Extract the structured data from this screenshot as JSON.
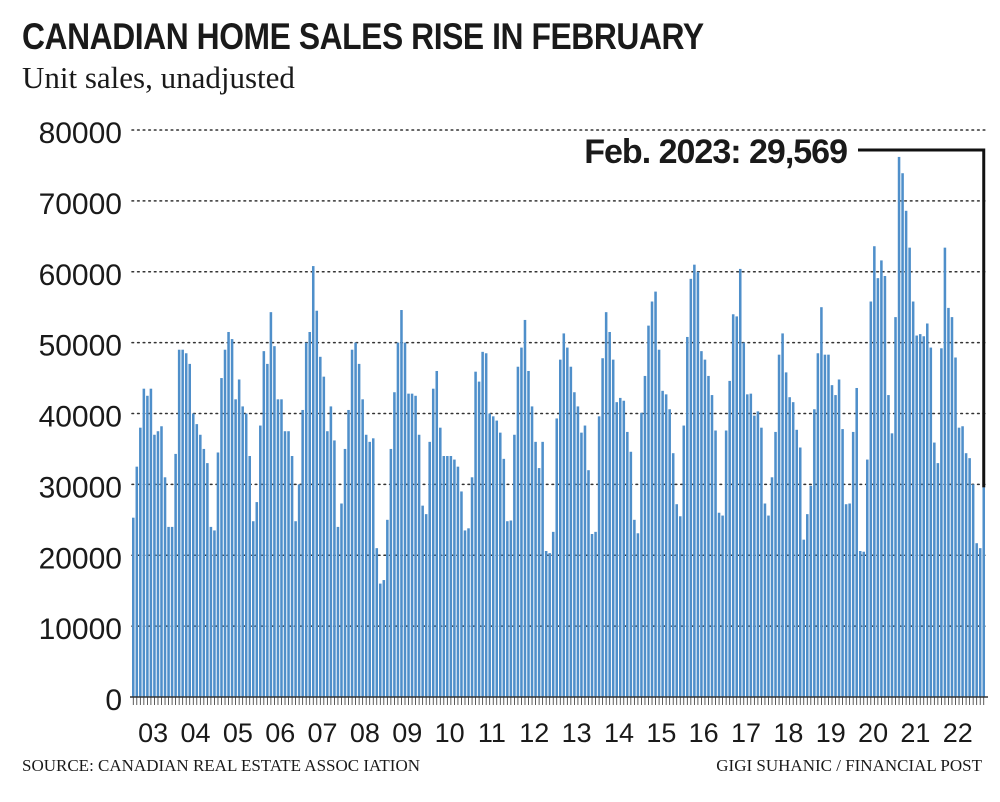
{
  "header": {
    "title": "CANADIAN HOME SALES RISE IN FEBRUARY",
    "subtitle": "Unit sales, unadjusted"
  },
  "footer": {
    "source": "SOURCE: CANADIAN REAL ESTATE ASSOC IATION",
    "credit": "GIGI SUHANIC / FINANCIAL POST"
  },
  "colors": {
    "bar": "#4f8fca",
    "text": "#1a1a1a",
    "grid": "#333333"
  },
  "chart_data": {
    "type": "bar",
    "title": "CANADIAN HOME SALES RISE IN FEBRUARY",
    "subtitle": "Unit sales, unadjusted",
    "ylim": [
      0,
      80000
    ],
    "yticks": [
      0,
      10000,
      20000,
      30000,
      40000,
      50000,
      60000,
      70000,
      80000
    ],
    "grid": "horizontal dotted",
    "xlabels": [
      "03",
      "04",
      "05",
      "06",
      "07",
      "08",
      "09",
      "10",
      "11",
      "12",
      "13",
      "14",
      "15",
      "16",
      "17",
      "18",
      "19",
      "20",
      "21",
      "22"
    ],
    "annotation": "Feb. 2023: 29,569",
    "values": [
      25300,
      32500,
      38000,
      43500,
      42500,
      43500,
      37000,
      37500,
      38200,
      31000,
      24000,
      24000,
      34300,
      49000,
      49000,
      48500,
      47000,
      40000,
      38500,
      37000,
      35000,
      33000,
      24000,
      23500,
      34500,
      45000,
      49000,
      51500,
      50500,
      42000,
      44800,
      41000,
      40000,
      34000,
      24800,
      27500,
      38300,
      48800,
      47000,
      54300,
      49500,
      42000,
      42000,
      37500,
      37500,
      34000,
      24800,
      30000,
      40500,
      50000,
      51500,
      60800,
      54500,
      48000,
      45200,
      37500,
      41000,
      36200,
      24000,
      27300,
      35000,
      40500,
      49000,
      50000,
      47000,
      42000,
      37000,
      36000,
      36500,
      21000,
      16000,
      16500,
      25000,
      35000,
      43000,
      50000,
      54600,
      50000,
      42800,
      42800,
      42500,
      37000,
      27000,
      25800,
      36000,
      43500,
      46000,
      38000,
      34000,
      34000,
      34000,
      33500,
      32500,
      29000,
      23500,
      23800,
      31000,
      45900,
      44500,
      48700,
      48500,
      40000,
      39600,
      39000,
      37300,
      33600,
      24800,
      24900,
      37000,
      46600,
      49300,
      53200,
      46000,
      41000,
      36000,
      32300,
      36000,
      20600,
      20300,
      23300,
      39300,
      47600,
      51300,
      49300,
      46600,
      43000,
      41000,
      37300,
      38300,
      32000,
      23000,
      23300,
      39600,
      47800,
      54300,
      51500,
      47600,
      41600,
      42200,
      41800,
      37400,
      34600,
      25000,
      23100,
      40100,
      45300,
      52400,
      55800,
      57200,
      49000,
      43200,
      42700,
      40600,
      34400,
      27200,
      25500,
      38300,
      50800,
      59000,
      61000,
      60000,
      48800,
      47600,
      45300,
      42600,
      37600,
      26000,
      25600,
      37600,
      44600,
      54000,
      53700,
      60400,
      50000,
      42700,
      42800,
      39700,
      40300,
      38000,
      27300,
      25600,
      31000,
      37400,
      48300,
      51300,
      45800,
      42300,
      41600,
      37700,
      35200,
      22200,
      25800,
      29800,
      40600,
      48500,
      55000,
      48300,
      48300,
      44000,
      42600,
      44800,
      37800,
      27200,
      27300,
      37400,
      43600,
      20600,
      20500,
      33500,
      55800,
      63600,
      59100,
      61600,
      59400,
      42600,
      37200,
      53600,
      76200,
      73900,
      68600,
      63400,
      55800,
      51000,
      51200,
      50900,
      52700,
      49300,
      35900,
      33000,
      49200,
      63400,
      54900,
      53600,
      47900,
      38000,
      38200,
      34400,
      33700,
      30000,
      21700,
      21000,
      29569
    ]
  }
}
